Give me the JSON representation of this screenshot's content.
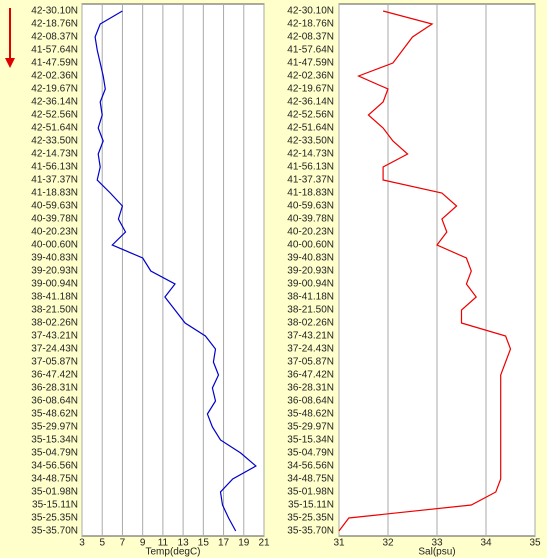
{
  "chart_data": [
    {
      "type": "line",
      "orientation": "horizontal",
      "xlabel": "Temp(degC)",
      "color": "#0000cc",
      "grid": true,
      "xlim": [
        3,
        21
      ],
      "xticks": [
        3,
        5,
        7,
        9,
        11,
        13,
        15,
        17,
        19,
        21
      ],
      "categories": [
        "42-30.10N",
        "42-18.76N",
        "42-08.37N",
        "41-57.64N",
        "41-47.59N",
        "42-02.36N",
        "42-19.67N",
        "42-36.14N",
        "42-52.56N",
        "42-51.64N",
        "42-33.50N",
        "42-14.73N",
        "41-56.13N",
        "41-37.37N",
        "41-18.83N",
        "40-59.63N",
        "40-39.78N",
        "40-20.23N",
        "40-00.60N",
        "39-40.83N",
        "39-20.93N",
        "39-00.94N",
        "38-41.18N",
        "38-21.50N",
        "38-02.26N",
        "37-43.21N",
        "37-24.43N",
        "37-05.87N",
        "36-47.42N",
        "36-28.31N",
        "36-08.64N",
        "35-48.62N",
        "35-29.97N",
        "35-15.34N",
        "35-04.79N",
        "34-56.56N",
        "34-48.75N",
        "35-01.98N",
        "35-15.11N",
        "35-25.35N",
        "35-35.70N"
      ],
      "values": [
        7,
        4.8,
        4.3,
        4.5,
        4.8,
        5.1,
        5.3,
        4.8,
        5.0,
        4.6,
        5.1,
        4.6,
        4.8,
        4.5,
        5.8,
        7.0,
        6.6,
        7.3,
        6.0,
        9.0,
        9.8,
        12.2,
        11.2,
        12.2,
        13.2,
        15.2,
        16.2,
        16.0,
        16.5,
        15.9,
        16.2,
        15.4,
        15.9,
        16.7,
        18.7,
        20.2,
        17.9,
        16.7,
        16.9,
        17.5,
        18.2
      ]
    },
    {
      "type": "line",
      "orientation": "horizontal",
      "xlabel": "Sal(psu)",
      "color": "#ee0000",
      "grid": true,
      "xlim": [
        31,
        35
      ],
      "xticks": [
        31,
        32,
        33,
        34,
        35
      ],
      "categories": [
        "42-30.10N",
        "42-18.76N",
        "42-08.37N",
        "41-57.64N",
        "41-47.59N",
        "42-02.36N",
        "42-19.67N",
        "42-36.14N",
        "42-52.56N",
        "42-51.64N",
        "42-33.50N",
        "42-14.73N",
        "41-56.13N",
        "41-37.37N",
        "41-18.83N",
        "40-59.63N",
        "40-39.78N",
        "40-20.23N",
        "40-00.60N",
        "39-40.83N",
        "39-20.93N",
        "39-00.94N",
        "38-41.18N",
        "38-21.50N",
        "38-02.26N",
        "37-43.21N",
        "37-24.43N",
        "37-05.87N",
        "36-47.42N",
        "36-28.31N",
        "36-08.64N",
        "35-48.62N",
        "35-29.97N",
        "35-15.34N",
        "35-04.79N",
        "34-56.56N",
        "34-48.75N",
        "35-01.98N",
        "35-15.11N",
        "35-25.35N",
        "35-35.70N"
      ],
      "values": [
        31.9,
        32.9,
        32.5,
        32.3,
        32.1,
        31.4,
        32.0,
        31.9,
        31.6,
        31.9,
        32.1,
        32.4,
        31.9,
        31.9,
        33.1,
        33.4,
        33.1,
        33.2,
        33.0,
        33.6,
        33.7,
        33.6,
        33.8,
        33.5,
        33.5,
        34.4,
        34.5,
        34.4,
        34.3,
        34.3,
        34.3,
        34.3,
        34.3,
        34.3,
        34.3,
        34.3,
        34.3,
        34.2,
        33.7,
        31.2,
        31.0
      ]
    }
  ]
}
